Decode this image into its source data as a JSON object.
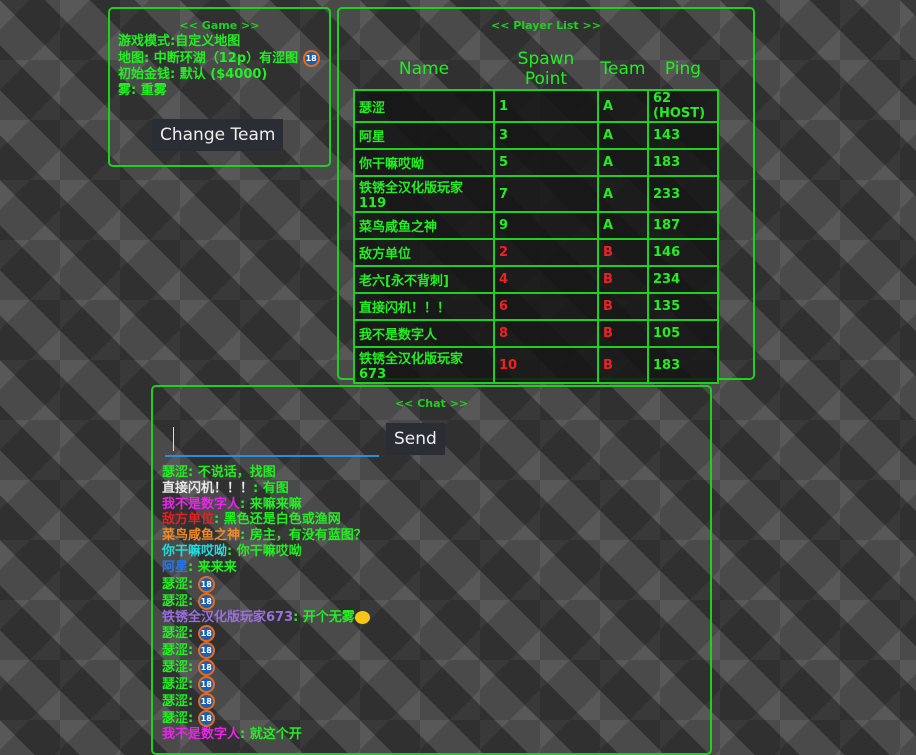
{
  "game": {
    "title": "<< Game >>",
    "lines": [
      "游戏模式:自定义地图",
      "地图: 中断环湖（12p）有涩图",
      "初始金钱: 默认 ($4000)",
      "雾: 重雾"
    ],
    "change_team": "Change Team"
  },
  "players": {
    "title": "<< Player List >>",
    "headers": [
      "Name",
      "Spawn Point",
      "Team",
      "Ping"
    ],
    "rows": [
      [
        "瑟涩",
        "1",
        "A",
        "62 (HOST)"
      ],
      [
        "阿星",
        "3",
        "A",
        "143"
      ],
      [
        "你干嘛哎呦",
        "5",
        "A",
        "183"
      ],
      [
        "铁锈全汉化版玩家119",
        "7",
        "A",
        "233"
      ],
      [
        "菜鸟咸鱼之神",
        "9",
        "A",
        "187"
      ],
      [
        "敌方单位",
        "2",
        "B",
        "146"
      ],
      [
        "老六[永不背刺]",
        "4",
        "B",
        "234"
      ],
      [
        "直接闪机！！！",
        "6",
        "B",
        "135"
      ],
      [
        "我不是数字人",
        "8",
        "B",
        "105"
      ],
      [
        "铁锈全汉化版玩家673",
        "10",
        "B",
        "183"
      ]
    ],
    "team_colors": {
      "A": "#22ee22",
      "B": "#ee2222"
    }
  },
  "chat": {
    "title": "<< Chat >>",
    "input_value": "",
    "send": "Send",
    "messages": [
      {
        "name": "瑟涩",
        "color": "#22ee22",
        "text": "不说话，找图"
      },
      {
        "name": "直接闪机！！！",
        "color": "#e8e8e8",
        "text": "有图"
      },
      {
        "name": "我不是数字人",
        "color": "#ee22ee",
        "text": "来嘛来嘛"
      },
      {
        "name": "敌方单位",
        "color": "#e22222",
        "text": "黑色还是白色或渔网"
      },
      {
        "name": "菜鸟咸鱼之神",
        "color": "#f08a24",
        "text": "房主，有没有蓝图？"
      },
      {
        "name": "你干嘛哎呦",
        "color": "#22dddd",
        "text": "你干嘛哎呦"
      },
      {
        "name": "阿星",
        "color": "#2277ee",
        "text": "来来来"
      },
      {
        "name": "瑟涩",
        "color": "#22ee22",
        "text": "",
        "emoji": "18"
      },
      {
        "name": "瑟涩",
        "color": "#22ee22",
        "text": "",
        "emoji": "18"
      },
      {
        "name": "铁锈全汉化版玩家673",
        "color": "#9a6fe0",
        "text": "开个无雾",
        "emoji": "grin"
      },
      {
        "name": "瑟涩",
        "color": "#22ee22",
        "text": "",
        "emoji": "18"
      },
      {
        "name": "瑟涩",
        "color": "#22ee22",
        "text": "",
        "emoji": "18"
      },
      {
        "name": "瑟涩",
        "color": "#22ee22",
        "text": "",
        "emoji": "18"
      },
      {
        "name": "瑟涩",
        "color": "#22ee22",
        "text": "",
        "emoji": "18"
      },
      {
        "name": "瑟涩",
        "color": "#22ee22",
        "text": "",
        "emoji": "18"
      },
      {
        "name": "瑟涩",
        "color": "#22ee22",
        "text": "",
        "emoji": "18"
      },
      {
        "name": "我不是数字人",
        "color": "#ee22ee",
        "text": "就这个开"
      }
    ]
  }
}
